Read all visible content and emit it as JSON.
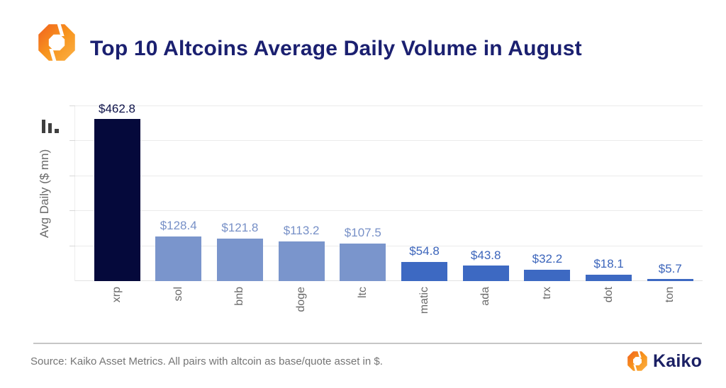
{
  "header": {
    "title": "Top 10 Altcoins Average Daily Volume in August"
  },
  "chart_data": {
    "type": "bar",
    "title": "Top 10 Altcoins Average Daily Volume in August",
    "ylabel": "Avg Daily ($ mn)",
    "xlabel": "",
    "categories": [
      "xrp",
      "sol",
      "bnb",
      "doge",
      "ltc",
      "matic",
      "ada",
      "trx",
      "dot",
      "ton"
    ],
    "values": [
      462.8,
      128.4,
      121.8,
      113.2,
      107.5,
      54.8,
      43.8,
      32.2,
      18.1,
      5.7
    ],
    "value_labels": [
      "$462.8",
      "$128.4",
      "$121.8",
      "$113.2",
      "$107.5",
      "$54.8",
      "$43.8",
      "$32.2",
      "$18.1",
      "$5.7"
    ],
    "ylim": [
      0,
      500
    ],
    "grid_interval": 100,
    "grid": "horizontal",
    "legend": false,
    "bar_colors": [
      "#05093B",
      "#7A95CC",
      "#7A95CC",
      "#7A95CC",
      "#7A95CC",
      "#3D69C2",
      "#3D69C2",
      "#3D69C2",
      "#3D69C2",
      "#3D69C2"
    ],
    "value_label_colors": [
      "#0D1249",
      "#7790C7",
      "#7790C7",
      "#7790C7",
      "#7790C7",
      "#3C65BB",
      "#3C65BB",
      "#3C65BB",
      "#3C65BB",
      "#3C65BB"
    ]
  },
  "footer": {
    "source": "Source: Kaiko Asset Metrics. All pairs with altcoin as base/quote asset in $.",
    "brand": "Kaiko"
  },
  "icons": {
    "header_logo": "kaiko-hexagon-mark",
    "chart_type": "bar-chart-icon",
    "footer_logo": "kaiko-hexagon-mark"
  },
  "colors": {
    "title": "#1B2070",
    "accent_orange_dark": "#F1611F",
    "accent_orange": "#F7941D",
    "accent_orange_light": "#FBB045",
    "bar_dark_navy": "#05093B",
    "bar_light_blue": "#7A95CC",
    "bar_medium_blue": "#3D69C2",
    "axis_text": "#6A6A6A",
    "source_text": "#757575",
    "gridline": "#EBEBEB"
  }
}
